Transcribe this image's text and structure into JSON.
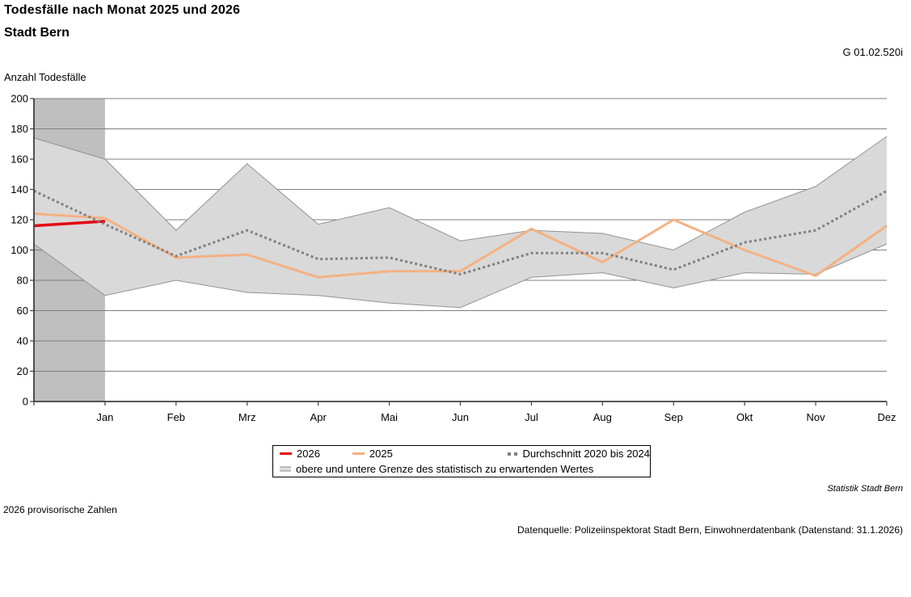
{
  "header": {
    "title": "Todesfälle nach Monat 2025 und 2026",
    "subtitle": "Stadt Bern",
    "graphic_code": "G 01.02.520i"
  },
  "chart_data": {
    "type": "line",
    "title": "Todesfälle nach Monat 2025 und 2026",
    "y_axis_label": "Anzahl Todesfälle",
    "ylim": [
      0,
      200
    ],
    "ytick_step": 20,
    "grid": true,
    "categories": [
      "",
      "Jan",
      "Feb",
      "Mrz",
      "Apr",
      "Mai",
      "Jun",
      "Jul",
      "Aug",
      "Sep",
      "Okt",
      "Nov",
      "Dez"
    ],
    "series": [
      {
        "name": "2026",
        "color": "#e30613",
        "width": 3.4,
        "values": [
          116,
          119,
          null,
          null,
          null,
          null,
          null,
          null,
          null,
          null,
          null,
          null,
          null
        ]
      },
      {
        "name": "2025",
        "color": "#f4b183",
        "width": 3,
        "values": [
          124,
          121,
          95,
          97,
          82,
          86,
          86,
          114,
          92,
          120,
          100,
          83,
          116
        ]
      },
      {
        "name": "Durchschnitt 2020 bis 2024",
        "color": "#7f7f7f",
        "style": "dotted",
        "width": 3,
        "values": [
          139,
          117,
          96,
          113,
          94,
          95,
          84,
          98,
          98,
          87,
          105,
          113,
          139
        ]
      }
    ],
    "band": {
      "name": "obere und untere Grenze des statistisch zu erwartenden Wertes",
      "fill": "#d9d9d9",
      "edge_color": "#929292",
      "upper": [
        174,
        160,
        113,
        157,
        117,
        128,
        106,
        113,
        111,
        100,
        125,
        142,
        175
      ],
      "lower": [
        104,
        70,
        80,
        72,
        70,
        65,
        62,
        82,
        85,
        75,
        85,
        84,
        104
      ]
    },
    "highlight_column": {
      "from": 0,
      "to": 1,
      "color": "#bfbfbf"
    },
    "axis_color": "#3f3f3f",
    "grid_color": "#7f7f7f",
    "legend_position": "bottom"
  },
  "legend": {
    "items": [
      {
        "label": "2026",
        "swatch": "line",
        "color": "#e30613"
      },
      {
        "label": "2025",
        "swatch": "line",
        "color": "#f4b183"
      },
      {
        "label": "Durchschnitt 2020 bis 2024",
        "swatch": "dotted",
        "color": "#7f7f7f"
      },
      {
        "label": "obere und untere Grenze des statistisch zu erwartenden Wertes",
        "swatch": "band",
        "color": "#c3c3c3"
      }
    ]
  },
  "footer": {
    "attribution": "Statistik Stadt Bern",
    "note": "2026 provisorische Zahlen",
    "source": "Datenquelle: Polizeiinspektorat Stadt Bern, Einwohnerdatenbank (Datenstand: 31.1.2026)"
  }
}
